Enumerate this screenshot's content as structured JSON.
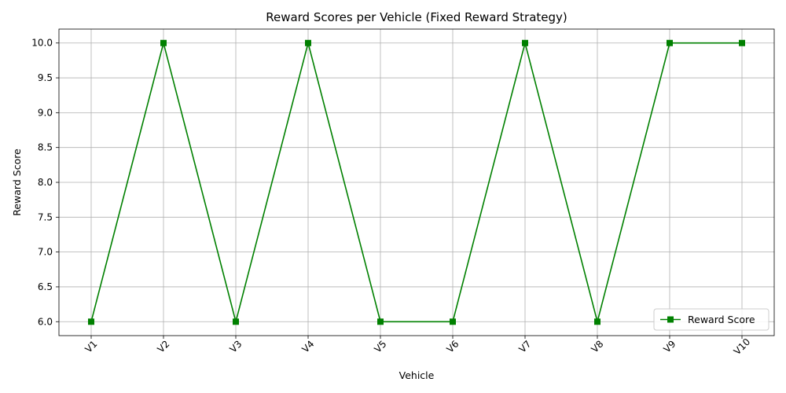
{
  "chart_data": {
    "type": "line",
    "title": "Reward Scores per Vehicle (Fixed Reward Strategy)",
    "xlabel": "Vehicle",
    "ylabel": "Reward Score",
    "categories": [
      "V1",
      "V2",
      "V3",
      "V4",
      "V5",
      "V6",
      "V7",
      "V8",
      "V9",
      "V10"
    ],
    "series": [
      {
        "name": "Reward Score",
        "values": [
          6,
          10,
          6,
          10,
          6,
          6,
          10,
          6,
          10,
          10
        ],
        "color": "#008000",
        "marker": "square"
      }
    ],
    "ylim": [
      5.8,
      10.2
    ],
    "yticks": [
      "6.0",
      "6.5",
      "7.0",
      "7.5",
      "8.0",
      "8.5",
      "9.0",
      "9.5",
      "10.0"
    ],
    "grid": true,
    "legend_position": "lower-right",
    "x_tick_rotation": 45
  }
}
